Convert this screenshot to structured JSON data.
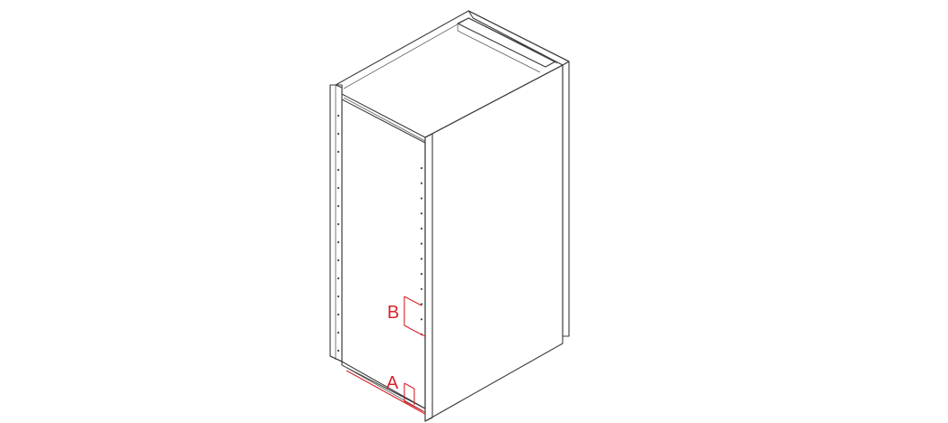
{
  "diagram": {
    "callouts": {
      "a": {
        "label": "A"
      },
      "b": {
        "label": "B"
      }
    },
    "colors": {
      "outline": "#3a3a3a",
      "callout": "#d8232a",
      "background": "#ffffff"
    },
    "shelf_pin_holes": {
      "left_column_count": 14,
      "right_column_count": 12
    }
  }
}
